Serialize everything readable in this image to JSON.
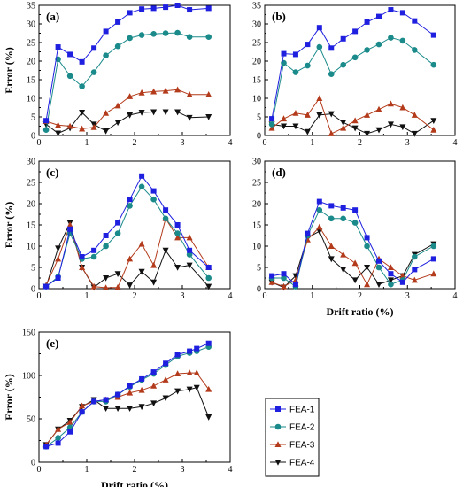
{
  "chart_data": [
    {
      "panel": "(a)",
      "type": "line",
      "xlim": [
        0,
        4
      ],
      "ylim": [
        0,
        35
      ],
      "xticks": [
        0,
        1,
        2,
        3,
        4
      ],
      "yticks": [
        0,
        5,
        10,
        15,
        20,
        25,
        30,
        35
      ],
      "ylabel": "Error (%)",
      "xlabel": "",
      "x": [
        0.15,
        0.4,
        0.65,
        0.9,
        1.15,
        1.4,
        1.65,
        1.9,
        2.15,
        2.4,
        2.65,
        2.9,
        3.15,
        3.55
      ],
      "series": [
        {
          "name": "FEA-1",
          "values": [
            4.0,
            23.8,
            21.8,
            19.8,
            23.5,
            28.0,
            30.5,
            33.0,
            34.0,
            34.2,
            34.5,
            35.0,
            33.8,
            34.2
          ]
        },
        {
          "name": "FEA-2",
          "values": [
            1.5,
            20.5,
            16.0,
            13.2,
            17.0,
            21.5,
            24.0,
            26.2,
            27.0,
            27.3,
            27.5,
            27.6,
            26.5,
            26.5
          ]
        },
        {
          "name": "FEA-3",
          "values": [
            3.8,
            2.8,
            2.5,
            1.8,
            2.2,
            6.0,
            8.0,
            10.5,
            11.5,
            11.8,
            12.0,
            12.3,
            11.0,
            11.0
          ]
        },
        {
          "name": "FEA-4",
          "values": [
            3.0,
            0.6,
            2.0,
            6.2,
            3.0,
            1.2,
            3.5,
            5.5,
            6.2,
            6.3,
            6.3,
            6.3,
            4.8,
            5.0
          ]
        }
      ]
    },
    {
      "panel": "(b)",
      "type": "line",
      "xlim": [
        0,
        4
      ],
      "ylim": [
        0,
        35
      ],
      "xticks": [
        0,
        1,
        2,
        3,
        4
      ],
      "yticks": [
        0,
        5,
        10,
        15,
        20,
        25,
        30,
        35
      ],
      "ylabel": "",
      "xlabel": "",
      "x": [
        0.15,
        0.4,
        0.65,
        0.9,
        1.15,
        1.4,
        1.65,
        1.9,
        2.15,
        2.4,
        2.65,
        2.9,
        3.15,
        3.55
      ],
      "series": [
        {
          "name": "FEA-1",
          "values": [
            4.5,
            22.0,
            21.8,
            24.5,
            29.0,
            23.5,
            26.0,
            28.0,
            30.5,
            32.0,
            33.8,
            33.0,
            30.8,
            27.0
          ]
        },
        {
          "name": "FEA-2",
          "values": [
            3.0,
            19.5,
            17.0,
            18.8,
            23.8,
            16.5,
            19.0,
            21.0,
            23.0,
            24.5,
            26.3,
            25.5,
            23.0,
            19.0
          ]
        },
        {
          "name": "FEA-3",
          "values": [
            2.0,
            4.5,
            6.0,
            5.5,
            10.0,
            0.5,
            2.0,
            4.0,
            5.5,
            7.0,
            8.5,
            7.5,
            5.5,
            1.5
          ]
        },
        {
          "name": "FEA-4",
          "values": [
            3.0,
            2.5,
            2.5,
            1.0,
            5.5,
            5.8,
            3.5,
            2.0,
            0.5,
            1.5,
            3.0,
            2.3,
            0.5,
            4.0
          ]
        }
      ]
    },
    {
      "panel": "(c)",
      "type": "line",
      "xlim": [
        0,
        4
      ],
      "ylim": [
        0,
        30
      ],
      "xticks": [
        0,
        1,
        2,
        3,
        4
      ],
      "yticks": [
        0,
        5,
        10,
        15,
        20,
        25,
        30
      ],
      "ylabel": "Error (%)",
      "xlabel": "",
      "x": [
        0.15,
        0.4,
        0.65,
        0.9,
        1.15,
        1.4,
        1.65,
        1.9,
        2.15,
        2.4,
        2.65,
        2.9,
        3.15,
        3.55
      ],
      "series": [
        {
          "name": "FEA-1",
          "values": [
            0.5,
            2.5,
            14.0,
            7.5,
            9.0,
            12.5,
            15.5,
            21.0,
            26.5,
            23.0,
            18.5,
            15.0,
            9.0,
            5.0
          ]
        },
        {
          "name": "FEA-2",
          "values": [
            0.5,
            2.8,
            13.0,
            7.0,
            7.5,
            10.0,
            13.0,
            19.5,
            24.0,
            21.0,
            16.5,
            13.0,
            8.0,
            2.5
          ]
        },
        {
          "name": "FEA-3",
          "values": [
            0.8,
            7.0,
            15.0,
            5.0,
            0.5,
            0.2,
            0.3,
            7.0,
            10.5,
            5.5,
            16.5,
            12.0,
            12.0,
            5.0
          ]
        },
        {
          "name": "FEA-4",
          "values": [
            0.5,
            9.5,
            15.5,
            5.0,
            0.3,
            2.5,
            3.5,
            0.8,
            4.0,
            1.5,
            9.0,
            5.0,
            5.5,
            0.5
          ]
        }
      ]
    },
    {
      "panel": "(d)",
      "type": "line",
      "xlim": [
        0,
        4
      ],
      "ylim": [
        0,
        30
      ],
      "xticks": [
        0,
        1,
        2,
        3,
        4
      ],
      "yticks": [
        0,
        5,
        10,
        15,
        20,
        25,
        30
      ],
      "ylabel": "",
      "xlabel": "Drift ratio (%)",
      "x": [
        0.15,
        0.4,
        0.65,
        0.9,
        1.15,
        1.4,
        1.65,
        1.9,
        2.15,
        2.4,
        2.65,
        2.9,
        3.15,
        3.55
      ],
      "series": [
        {
          "name": "FEA-1",
          "values": [
            3.0,
            3.5,
            1.0,
            13.0,
            20.5,
            19.5,
            19.0,
            18.5,
            12.0,
            6.5,
            3.5,
            1.5,
            4.5,
            7.0
          ]
        },
        {
          "name": "FEA-2",
          "values": [
            2.5,
            2.5,
            0.5,
            12.5,
            18.5,
            16.5,
            16.5,
            15.5,
            10.0,
            5.0,
            1.0,
            2.0,
            7.5,
            10.0
          ]
        },
        {
          "name": "FEA-3",
          "values": [
            1.5,
            0.5,
            2.0,
            11.5,
            14.5,
            10.0,
            8.0,
            6.0,
            1.0,
            7.0,
            5.0,
            3.0,
            2.0,
            3.5
          ]
        },
        {
          "name": "FEA-4",
          "values": [
            1.5,
            0.3,
            3.0,
            12.0,
            13.5,
            7.0,
            4.5,
            2.0,
            5.0,
            1.0,
            2.0,
            3.0,
            8.0,
            10.5
          ]
        }
      ]
    },
    {
      "panel": "(e)",
      "type": "line",
      "xlim": [
        0,
        4
      ],
      "ylim": [
        0,
        150
      ],
      "xticks": [
        0,
        1,
        2,
        3,
        4
      ],
      "yticks": [
        0,
        50,
        100,
        150
      ],
      "ylabel": "Error (%)",
      "xlabel": "Drift ratio (%)",
      "x": [
        0.15,
        0.4,
        0.65,
        0.9,
        1.15,
        1.4,
        1.65,
        1.9,
        2.15,
        2.4,
        2.65,
        2.9,
        3.15,
        3.3,
        3.55
      ],
      "series": [
        {
          "name": "FEA-1",
          "values": [
            18,
            22,
            35,
            58,
            70,
            72,
            78,
            88,
            96,
            104,
            114,
            124,
            128,
            131,
            137
          ]
        },
        {
          "name": "FEA-2",
          "values": [
            18,
            28,
            40,
            58,
            70,
            70,
            78,
            87,
            95,
            102,
            112,
            122,
            126,
            128,
            133
          ]
        },
        {
          "name": "FEA-3",
          "values": [
            20,
            38,
            46,
            65,
            70,
            72,
            75,
            80,
            83,
            88,
            95,
            102,
            103,
            103,
            84
          ]
        },
        {
          "name": "FEA-4",
          "values": [
            20,
            38,
            48,
            64,
            72,
            62,
            62,
            62,
            64,
            68,
            74,
            82,
            84,
            86,
            52
          ]
        }
      ]
    }
  ],
  "legend": {
    "entries": [
      "FEA-1",
      "FEA-2",
      "FEA-3",
      "FEA-4"
    ]
  },
  "styles": {
    "FEA-1": {
      "color": "#1f1fe0",
      "marker": "square"
    },
    "FEA-2": {
      "color": "#1a8a8a",
      "marker": "circle"
    },
    "FEA-3": {
      "color": "#b33a1a",
      "marker": "triangle-up"
    },
    "FEA-4": {
      "color": "#111111",
      "marker": "triangle-down"
    }
  }
}
